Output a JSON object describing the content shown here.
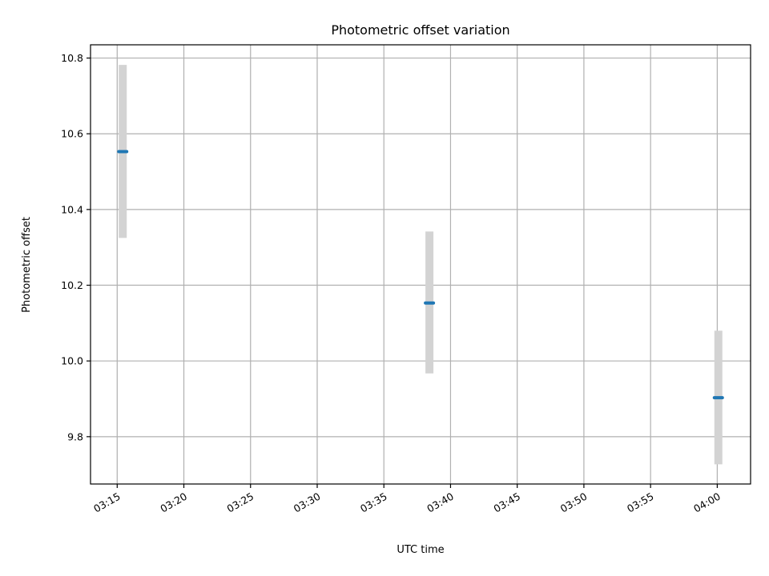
{
  "chart_data": {
    "type": "scatter",
    "title": "Photometric offset variation",
    "xlabel": "UTC time",
    "ylabel": "Photometric offset",
    "x_ticks": [
      "03:15",
      "03:20",
      "03:25",
      "03:30",
      "03:35",
      "03:40",
      "03:45",
      "03:50",
      "03:55",
      "04:00"
    ],
    "y_ticks": [
      "9.8",
      "10.0",
      "10.2",
      "10.4",
      "10.6",
      "10.8"
    ],
    "xlim": [
      "03:13:00",
      "04:02:30"
    ],
    "ylim": [
      9.675,
      10.835
    ],
    "grid": true,
    "points": [
      {
        "x": "03:15:25",
        "y": 10.553,
        "y_low": 10.325,
        "y_high": 10.782
      },
      {
        "x": "03:38:25",
        "y": 10.153,
        "y_low": 9.967,
        "y_high": 10.342
      },
      {
        "x": "04:00:05",
        "y": 9.903,
        "y_low": 9.727,
        "y_high": 10.08
      }
    ],
    "colors": {
      "marker": "#1f77b4",
      "errorbar": "#d3d3d3",
      "grid": "#b0b0b0",
      "axes": "#000000"
    }
  }
}
